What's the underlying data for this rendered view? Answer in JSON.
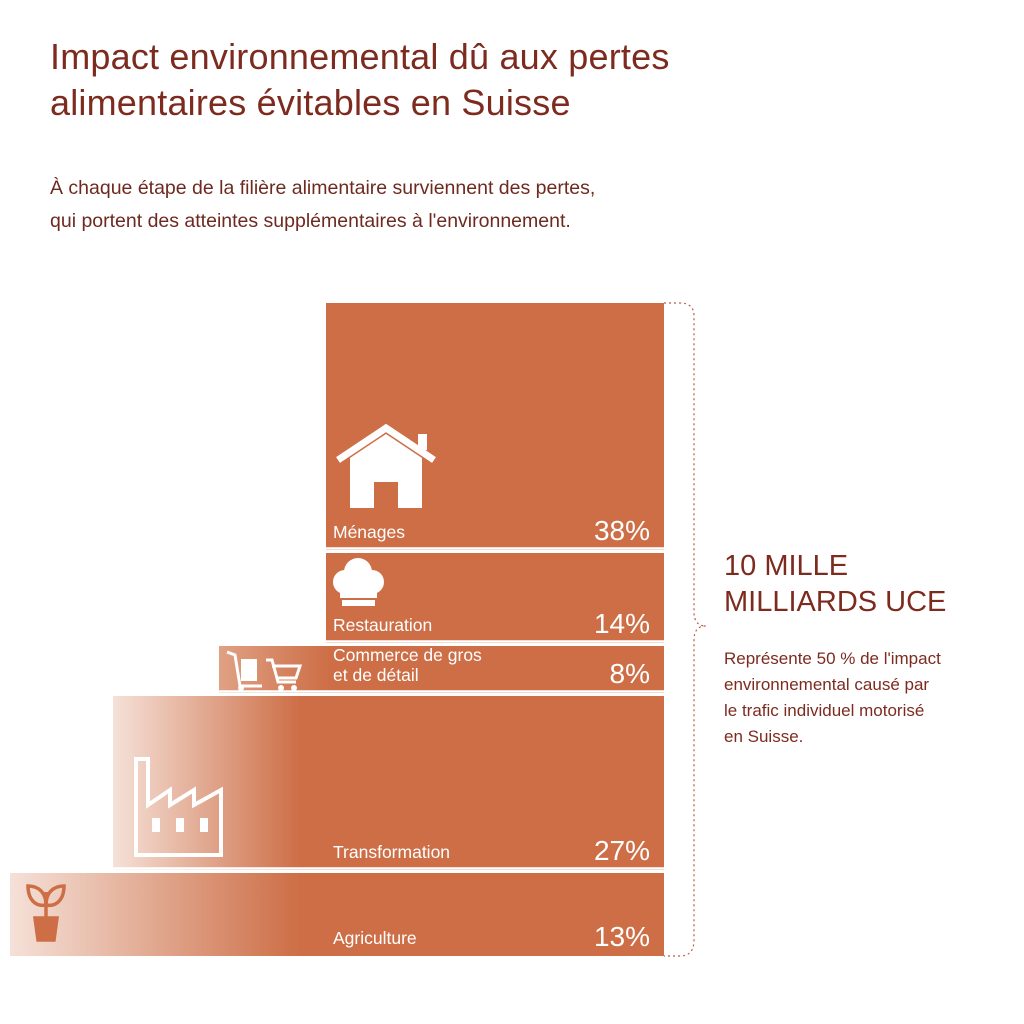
{
  "title_line1": "Impact environnemental dû aux pertes",
  "title_line2": "alimentaires évitables en Suisse",
  "subtitle_line1": "À chaque étape de la filière alimentaire surviennent des pertes,",
  "subtitle_line2": "qui portent des atteintes supplémentaires à l'environnement.",
  "total": {
    "line1": "10 MILLE",
    "line2": "MILLIARDS UCE"
  },
  "note": {
    "line1": "Représente 50 % de l'impact",
    "line2": "environnemental causé par",
    "line3": "le trafic individuel motorisé",
    "line4": "en Suisse."
  },
  "colors": {
    "bar": "#cd6e46",
    "text": "#7d2b1f",
    "fade": "#f5e1d8"
  },
  "chart_data": {
    "type": "bar",
    "unit": "%",
    "categories": [
      "Ménages",
      "Restauration",
      "Commerce de gros et de détail",
      "Transformation",
      "Agriculture"
    ],
    "values": [
      38,
      14,
      8,
      27,
      13
    ],
    "value_labels": [
      "38%",
      "14%",
      "8%",
      "27%",
      "13%"
    ],
    "label_lines": [
      [
        "Ménages"
      ],
      [
        "Restauration"
      ],
      [
        "Commerce de gros",
        "et de détail"
      ],
      [
        "Transformation"
      ],
      [
        "Agriculture"
      ]
    ],
    "icons": [
      "house-icon",
      "chef-hat-icon",
      "cart-icon",
      "factory-icon",
      "plant-icon"
    ],
    "stacking": "vertical-stack",
    "total_label": "10 MILLE MILLIARDS UCE"
  }
}
